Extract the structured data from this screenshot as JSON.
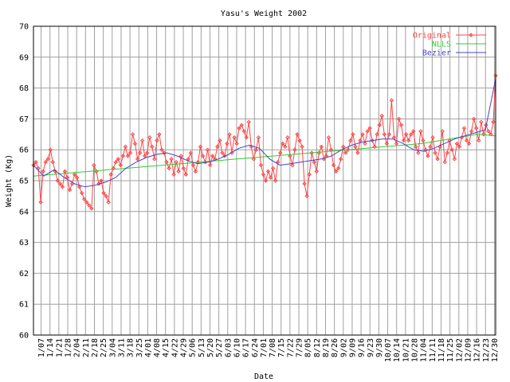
{
  "chart_data": {
    "type": "line",
    "title": "Yasu's Weight 2002",
    "xlabel": "Date",
    "ylabel": "Weight (Kg)",
    "x_range": [
      "01/01",
      "12/31"
    ],
    "ylim": [
      60,
      70
    ],
    "y_ticks": [
      "60",
      "61",
      "62",
      "63",
      "64",
      "65",
      "66",
      "67",
      "68",
      "69",
      "70"
    ],
    "x_ticks": [
      "1/07",
      "1/14",
      "1/21",
      "1/28",
      "2/04",
      "2/11",
      "2/18",
      "2/25",
      "3/04",
      "3/11",
      "3/18",
      "3/25",
      "4/01",
      "4/08",
      "4/15",
      "4/22",
      "4/29",
      "5/06",
      "5/13",
      "5/20",
      "5/27",
      "6/03",
      "6/10",
      "6/17",
      "6/24",
      "7/01",
      "7/08",
      "7/15",
      "7/22",
      "7/29",
      "8/05",
      "8/12",
      "8/19",
      "8/26",
      "9/02",
      "9/09",
      "9/16",
      "9/23",
      "9/30",
      "10/07",
      "10/14",
      "10/21",
      "10/28",
      "11/04",
      "11/11",
      "11/18",
      "11/25",
      "12/02",
      "12/09",
      "12/16",
      "12/23",
      "12/30"
    ],
    "grid": true,
    "legend_position": "top-right",
    "series": [
      {
        "name": "Original",
        "style": "line+points",
        "color": "#ff4444",
        "values": [
          65.5,
          65.6,
          65.4,
          64.3,
          65.3,
          65.6,
          65.7,
          66.0,
          65.6,
          65.3,
          65.0,
          64.9,
          64.8,
          65.3,
          65.1,
          64.7,
          64.9,
          65.2,
          65.1,
          64.8,
          64.6,
          64.4,
          64.3,
          64.2,
          64.1,
          65.5,
          65.3,
          64.9,
          65.0,
          64.6,
          64.5,
          64.3,
          65.2,
          65.4,
          65.6,
          65.7,
          65.5,
          65.8,
          66.1,
          65.8,
          65.9,
          66.5,
          66.2,
          65.7,
          65.9,
          66.3,
          65.8,
          65.9,
          66.4,
          66.1,
          65.7,
          66.3,
          66.5,
          66.0,
          65.9,
          65.6,
          65.4,
          65.7,
          65.2,
          65.6,
          65.3,
          65.8,
          65.4,
          65.2,
          65.7,
          65.9,
          65.5,
          65.3,
          65.6,
          66.1,
          65.8,
          65.6,
          66.0,
          65.5,
          65.8,
          65.7,
          66.1,
          66.3,
          65.9,
          65.8,
          66.2,
          66.5,
          65.9,
          66.4,
          66.2,
          66.7,
          66.8,
          66.6,
          66.4,
          66.9,
          66.1,
          65.7,
          66.0,
          66.4,
          65.5,
          65.2,
          65.0,
          65.3,
          65.1,
          65.4,
          65.0,
          65.6,
          65.9,
          66.2,
          66.1,
          66.4,
          65.8,
          65.5,
          66.0,
          66.5,
          66.3,
          66.1,
          64.9,
          64.5,
          65.2,
          65.9,
          65.6,
          65.3,
          65.9,
          66.1,
          65.7,
          65.8,
          66.4,
          66.0,
          65.5,
          65.3,
          65.4,
          65.7,
          66.1,
          65.9,
          66.0,
          66.3,
          66.5,
          66.1,
          65.9,
          66.3,
          66.5,
          66.2,
          66.6,
          66.7,
          66.3,
          66.1,
          66.5,
          66.8,
          67.1,
          66.5,
          66.2,
          66.5,
          67.6,
          66.4,
          66.2,
          67.0,
          66.8,
          66.3,
          66.5,
          66.3,
          66.5,
          66.6,
          66.1,
          65.9,
          66.6,
          66.3,
          66.0,
          65.8,
          66.1,
          66.4,
          65.9,
          65.7,
          66.1,
          66.6,
          65.6,
          65.9,
          66.3,
          66.0,
          65.7,
          66.2,
          66.1,
          66.4,
          66.7,
          66.3,
          66.2,
          66.6,
          67.0,
          66.7,
          66.3,
          66.9,
          66.5,
          66.8,
          66.6,
          66.5,
          66.9,
          68.4
        ],
        "raw_points_note": "Daily readings with high-frequency noise; values approximate."
      },
      {
        "name": "NLLS",
        "style": "line",
        "color": "#33cc33",
        "values": [
          65.15,
          65.2,
          65.25,
          65.3,
          65.35,
          65.4,
          65.45,
          65.5,
          65.55,
          65.6,
          65.65,
          65.7,
          65.75,
          65.8,
          65.85,
          65.9,
          65.95,
          66.0,
          66.05,
          66.1,
          66.15,
          66.2,
          66.3,
          66.4,
          66.5,
          66.45
        ]
      },
      {
        "name": "Bezier",
        "style": "line",
        "color": "#4444cc",
        "values": [
          65.5,
          65.15,
          65.35,
          65.1,
          64.9,
          64.8,
          64.85,
          64.95,
          65.1,
          65.4,
          65.6,
          65.75,
          65.85,
          65.9,
          65.8,
          65.65,
          65.55,
          65.6,
          65.7,
          65.85,
          66.05,
          66.15,
          66.05,
          65.7,
          65.5,
          65.55,
          65.6,
          65.65,
          65.7,
          65.8,
          66.0,
          66.15,
          66.25,
          66.3,
          66.35,
          66.35,
          66.2,
          66.0,
          65.95,
          66.05,
          66.2,
          66.35,
          66.45,
          66.55,
          66.65,
          68.3
        ]
      }
    ]
  }
}
